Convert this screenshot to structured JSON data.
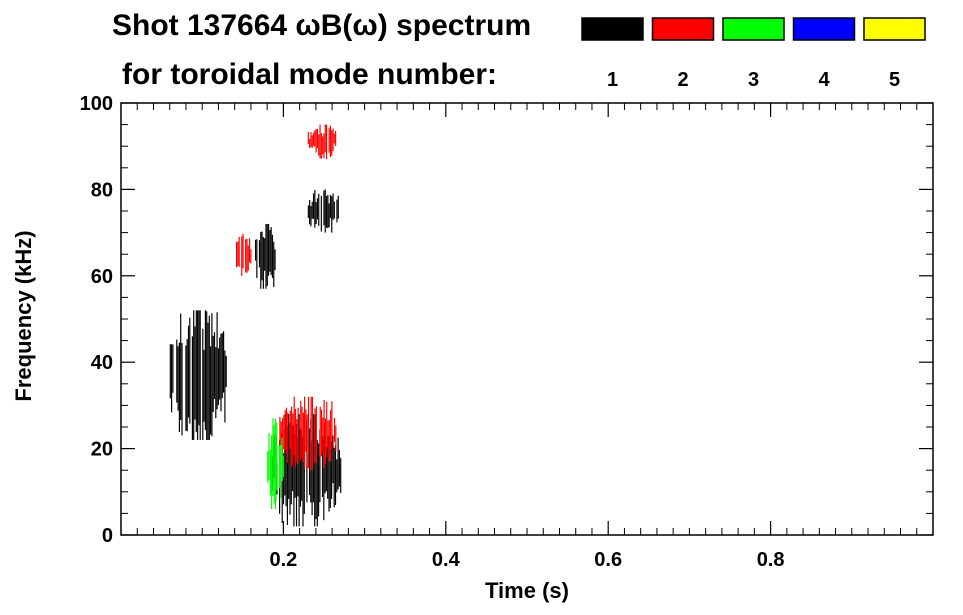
{
  "chart_data": {
    "type": "heatmap",
    "title_line1": "Shot 137664 ωB(ω) spectrum",
    "title_line2": "for toroidal mode number:",
    "xlabel": "Time (s)",
    "ylabel": "Frequency (kHz)",
    "xlim": [
      0.0,
      1.0
    ],
    "ylim": [
      0,
      100
    ],
    "x_ticks": [
      0.2,
      0.4,
      0.6,
      0.8
    ],
    "x_tick_labels": [
      "0.2",
      "0.4",
      "0.6",
      "0.8"
    ],
    "y_ticks": [
      0,
      20,
      40,
      60,
      80,
      100
    ],
    "y_tick_labels": [
      "0",
      "20",
      "40",
      "60",
      "80",
      "100"
    ],
    "legend_placement": "top-right",
    "modes": [
      {
        "label": "1",
        "color": "#000000"
      },
      {
        "label": "2",
        "color": "#ff0000"
      },
      {
        "label": "3",
        "color": "#00ff00"
      },
      {
        "label": "4",
        "color": "#0000ff"
      },
      {
        "label": "5",
        "color": "#ffff00"
      }
    ],
    "regions": [
      {
        "mode": "1",
        "t": [
          0.06,
          0.13
        ],
        "f": [
          22,
          52
        ]
      },
      {
        "mode": "1",
        "t": [
          0.165,
          0.19
        ],
        "f": [
          57,
          72
        ]
      },
      {
        "mode": "1",
        "t": [
          0.185,
          0.27
        ],
        "f": [
          2,
          28
        ]
      },
      {
        "mode": "1",
        "t": [
          0.23,
          0.27
        ],
        "f": [
          70,
          80
        ]
      },
      {
        "mode": "2",
        "t": [
          0.23,
          0.265
        ],
        "f": [
          87,
          95
        ]
      },
      {
        "mode": "2",
        "t": [
          0.195,
          0.265
        ],
        "f": [
          15,
          32
        ]
      },
      {
        "mode": "2",
        "t": [
          0.14,
          0.16
        ],
        "f": [
          60,
          70
        ]
      },
      {
        "mode": "3",
        "t": [
          0.18,
          0.2
        ],
        "f": [
          6,
          27
        ]
      }
    ]
  }
}
